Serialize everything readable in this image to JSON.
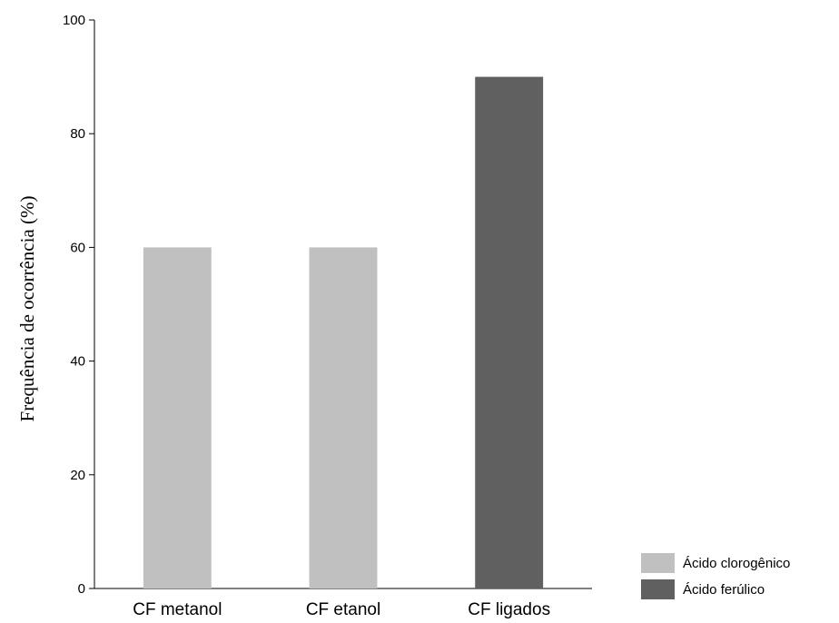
{
  "chart_data": {
    "type": "bar",
    "categories": [
      "CF metanol",
      "CF etanol",
      "CF ligados"
    ],
    "values": [
      60,
      60,
      90
    ],
    "bar_series": [
      "Ácido clorogênico",
      "Ácido clorogênico",
      "Ácido ferúlico"
    ],
    "series": [
      {
        "name": "Ácido clorogênico",
        "color": "#c0c0c0"
      },
      {
        "name": "Ácido ferúlico",
        "color": "#606060"
      }
    ],
    "title": "",
    "xlabel": "",
    "ylabel": "Frequência de ocorrência (%)",
    "ylim": [
      0,
      100
    ],
    "yticks": [
      0,
      20,
      40,
      60,
      80,
      100
    ],
    "grid": false,
    "legend_position": "bottom-right"
  }
}
